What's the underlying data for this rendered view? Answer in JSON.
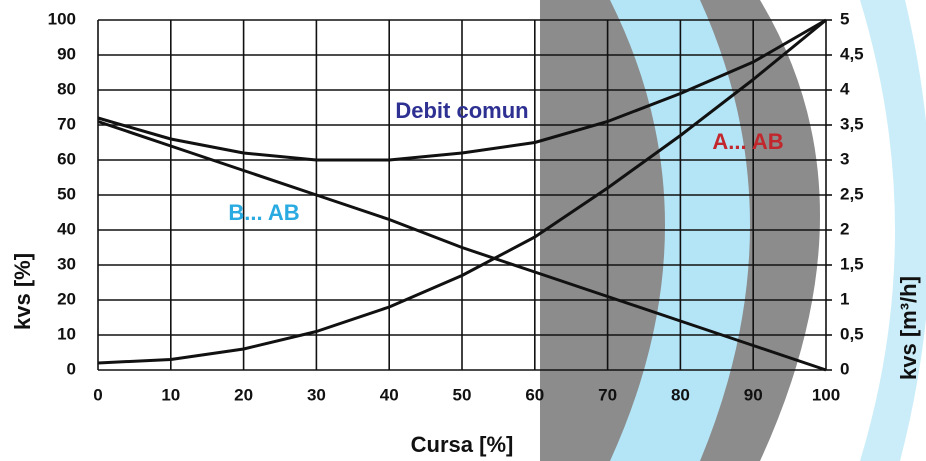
{
  "chart_data": {
    "type": "line",
    "x": [
      0,
      10,
      20,
      30,
      40,
      50,
      60,
      70,
      80,
      90,
      100
    ],
    "series": [
      {
        "name": "Debit comun",
        "color": "#111111",
        "values": [
          72,
          66,
          62,
          60,
          60,
          62,
          65,
          71,
          79,
          88,
          100
        ]
      },
      {
        "name": "A... AB",
        "color": "#111111",
        "values": [
          2,
          3,
          6,
          11,
          18,
          27,
          38,
          52,
          67,
          83,
          100
        ]
      },
      {
        "name": "B... AB",
        "color": "#111111",
        "values": [
          71,
          64,
          57,
          50,
          43,
          35,
          28,
          21,
          14,
          7,
          0
        ]
      }
    ],
    "annotations": [
      {
        "text": "Debit comun",
        "color": "#2e3192"
      },
      {
        "text": "A... AB",
        "color": "#c1272d"
      },
      {
        "text": "B... AB",
        "color": "#29abe2"
      }
    ],
    "xlabel": "Cursa [%]",
    "ylabel": "kvs [%]",
    "y2label": "kvs [m³/h]",
    "xlim": [
      0,
      100
    ],
    "xticks": [
      0,
      10,
      20,
      30,
      40,
      50,
      60,
      70,
      80,
      90,
      100
    ],
    "ylim": [
      0,
      100
    ],
    "yticks": [
      0,
      10,
      20,
      30,
      40,
      50,
      60,
      70,
      80,
      90,
      100
    ],
    "y2lim": [
      0,
      5
    ],
    "y2ticks": [
      0,
      {
        "value": 0.5,
        "label": "0,5"
      },
      1,
      {
        "value": 1.5,
        "label": "1,5"
      },
      2,
      {
        "value": 2.5,
        "label": "2,5"
      },
      3,
      {
        "value": 3.5,
        "label": "3,5"
      },
      4,
      {
        "value": 4.5,
        "label": "4,5"
      },
      5
    ],
    "grid": true
  }
}
